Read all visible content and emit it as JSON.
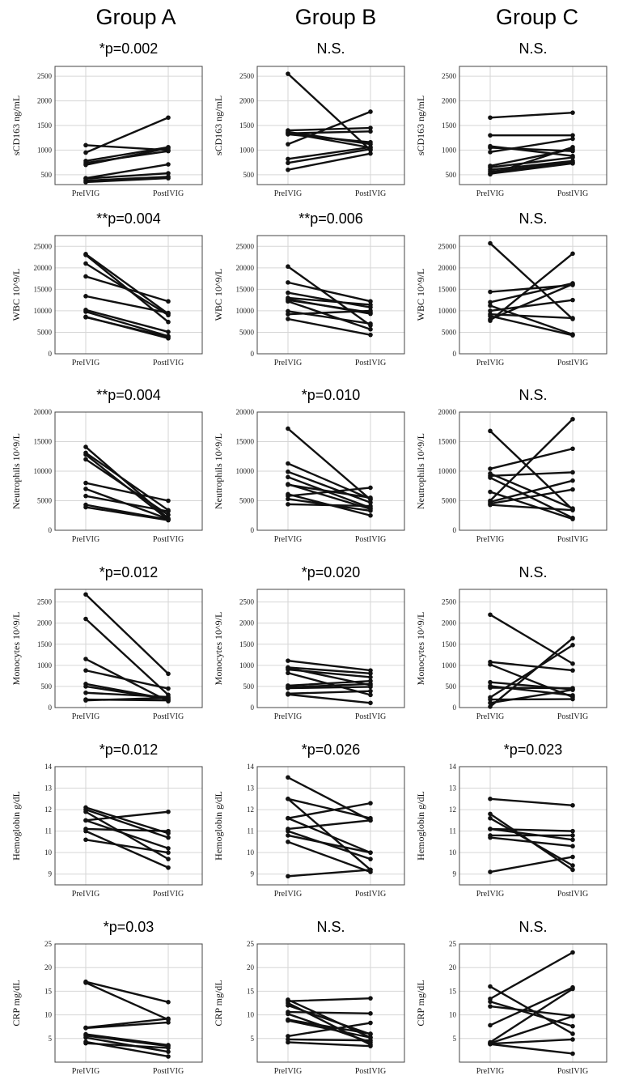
{
  "groups": [
    "Group A",
    "Group B",
    "Group C"
  ],
  "x_categories": [
    "PreIVIG",
    "PostIVIG"
  ],
  "rows": [
    {
      "key": "scd163",
      "ylabel": "sCD163 ng/mL",
      "ylim": [
        300,
        2700
      ],
      "yticks": [
        500,
        1000,
        1500,
        2000,
        2500
      ],
      "pvalues": [
        "*p=0.002",
        "N.S.",
        "N.S."
      ],
      "series": [
        [
          [
            1100,
            1000
          ],
          [
            950,
            1660
          ],
          [
            780,
            1060
          ],
          [
            740,
            980
          ],
          [
            700,
            1040
          ],
          [
            430,
            710
          ],
          [
            420,
            530
          ],
          [
            380,
            460
          ],
          [
            350,
            430
          ]
        ],
        [
          [
            2550,
            1000
          ],
          [
            1400,
            1450
          ],
          [
            1370,
            1120
          ],
          [
            1350,
            1050
          ],
          [
            1340,
            1380
          ],
          [
            1320,
            1160
          ],
          [
            1120,
            1780
          ],
          [
            820,
            1060
          ],
          [
            740,
            1020
          ],
          [
            600,
            930
          ]
        ],
        [
          [
            1660,
            1760
          ],
          [
            1300,
            1300
          ],
          [
            1080,
            880
          ],
          [
            1050,
            980
          ],
          [
            960,
            1230
          ],
          [
            680,
            1020
          ],
          [
            650,
            850
          ],
          [
            600,
            780
          ],
          [
            560,
            750
          ],
          [
            520,
            730
          ],
          [
            510,
            1060
          ]
        ]
      ]
    },
    {
      "key": "wbc",
      "ylabel": "WBC 10^9/L",
      "ylim": [
        0,
        27500
      ],
      "yticks": [
        0,
        5000,
        10000,
        15000,
        20000,
        25000
      ],
      "pvalues": [
        "**p=0.004",
        "**p=0.006",
        "N.S."
      ],
      "series": [
        [
          [
            23200,
            9300
          ],
          [
            23000,
            7400
          ],
          [
            21000,
            9000
          ],
          [
            18000,
            12200
          ],
          [
            13400,
            9500
          ],
          [
            10200,
            5100
          ],
          [
            9800,
            4100
          ],
          [
            8600,
            3600
          ],
          [
            8500,
            3900
          ]
        ],
        [
          [
            20300,
            6600
          ],
          [
            16600,
            12200
          ],
          [
            14200,
            10800
          ],
          [
            13000,
            11400
          ],
          [
            12500,
            9600
          ],
          [
            12200,
            5700
          ],
          [
            9900,
            7000
          ],
          [
            9200,
            10000
          ],
          [
            8100,
            4400
          ],
          [
            12700,
            9300
          ]
        ],
        [
          [
            25700,
            8100
          ],
          [
            14400,
            16000
          ],
          [
            12000,
            16400
          ],
          [
            11200,
            4500
          ],
          [
            10000,
            12500
          ],
          [
            9200,
            8300
          ],
          [
            8800,
            4300
          ],
          [
            8000,
            16200
          ],
          [
            7700,
            23300
          ]
        ]
      ]
    },
    {
      "key": "neutrophils",
      "ylabel": "Neutrophils 10^9/L",
      "ylim": [
        0,
        20000
      ],
      "yticks": [
        0,
        5000,
        10000,
        15000,
        20000
      ],
      "pvalues": [
        "**p=0.004",
        "*p=0.010",
        "N.S."
      ],
      "series": [
        [
          [
            14100,
            2000
          ],
          [
            13100,
            3400
          ],
          [
            12800,
            1800
          ],
          [
            12000,
            2600
          ],
          [
            8000,
            5000
          ],
          [
            7000,
            1900
          ],
          [
            5800,
            3200
          ],
          [
            4300,
            1800
          ],
          [
            3900,
            1700
          ]
        ],
        [
          [
            17200,
            5200
          ],
          [
            11300,
            5300
          ],
          [
            9900,
            4700
          ],
          [
            9000,
            3800
          ],
          [
            7800,
            3600
          ],
          [
            7700,
            5500
          ],
          [
            6100,
            2500
          ],
          [
            5800,
            7200
          ],
          [
            5300,
            3300
          ],
          [
            4400,
            4100
          ]
        ],
        [
          [
            16800,
            3500
          ],
          [
            10400,
            13800
          ],
          [
            9600,
            3700
          ],
          [
            9200,
            9800
          ],
          [
            8900,
            2100
          ],
          [
            6500,
            1900
          ],
          [
            5000,
            18800
          ],
          [
            4800,
            8400
          ],
          [
            4500,
            6900
          ],
          [
            4300,
            3400
          ]
        ]
      ]
    },
    {
      "key": "monocytes",
      "ylabel": "Monocytes 10^9/L",
      "ylim": [
        0,
        2800
      ],
      "yticks": [
        0,
        500,
        1000,
        1500,
        2000,
        2500
      ],
      "pvalues": [
        "*p=0.012",
        "*p=0.020",
        "N.S."
      ],
      "series": [
        [
          [
            2680,
            800
          ],
          [
            2100,
            300
          ],
          [
            1150,
            150
          ],
          [
            880,
            450
          ],
          [
            560,
            200
          ],
          [
            500,
            200
          ],
          [
            350,
            250
          ],
          [
            190,
            170
          ],
          [
            170,
            230
          ]
        ],
        [
          [
            1110,
            880
          ],
          [
            950,
            810
          ],
          [
            940,
            530
          ],
          [
            900,
            720
          ],
          [
            820,
            300
          ],
          [
            520,
            630
          ],
          [
            480,
            560
          ],
          [
            460,
            490
          ],
          [
            330,
            390
          ],
          [
            310,
            110
          ]
        ],
        [
          [
            2200,
            1040
          ],
          [
            1080,
            880
          ],
          [
            1020,
            250
          ],
          [
            600,
            430
          ],
          [
            510,
            290
          ],
          [
            470,
            460
          ],
          [
            240,
            1480
          ],
          [
            190,
            200
          ],
          [
            110,
            420
          ],
          [
            20,
            1640
          ]
        ]
      ]
    },
    {
      "key": "hemoglobin",
      "ylabel": "Hemoglobin g/dL",
      "ylim": [
        8.5,
        14
      ],
      "yticks": [
        9,
        10,
        11,
        12,
        13,
        14
      ],
      "pvalues": [
        "*p=0.012",
        "*p=0.026",
        "*p=0.023"
      ],
      "series": [
        [
          [
            12.1,
            10.9
          ],
          [
            12.0,
            10.7
          ],
          [
            11.9,
            9.7
          ],
          [
            11.5,
            11.9
          ],
          [
            11.5,
            10.2
          ],
          [
            11.1,
            11.0
          ],
          [
            11.0,
            9.3
          ],
          [
            10.6,
            10.0
          ]
        ],
        [
          [
            13.5,
            11.5
          ],
          [
            12.5,
            11.6
          ],
          [
            12.5,
            9.2
          ],
          [
            11.6,
            10.0
          ],
          [
            11.6,
            12.3
          ],
          [
            11.1,
            11.5
          ],
          [
            11.0,
            9.7
          ],
          [
            10.8,
            10.0
          ],
          [
            10.5,
            9.1
          ],
          [
            8.9,
            9.2
          ]
        ],
        [
          [
            12.5,
            12.2
          ],
          [
            11.8,
            9.2
          ],
          [
            11.6,
            9.4
          ],
          [
            11.1,
            11.0
          ],
          [
            11.1,
            10.6
          ],
          [
            10.8,
            10.8
          ],
          [
            10.7,
            10.3
          ],
          [
            9.1,
            9.8
          ]
        ]
      ]
    },
    {
      "key": "crp",
      "ylabel": "CRP mg/dL",
      "ylim": [
        0,
        25
      ],
      "yticks": [
        5,
        10,
        15,
        20,
        25
      ],
      "pvalues": [
        "*p=0.03",
        "N.S.",
        "N.S."
      ],
      "series": [
        [
          [
            17.0,
            12.7
          ],
          [
            16.8,
            9.0
          ],
          [
            7.3,
            9.2
          ],
          [
            7.2,
            8.4
          ],
          [
            5.9,
            3.6
          ],
          [
            5.6,
            3.4
          ],
          [
            5.2,
            2.2
          ],
          [
            4.3,
            1.2
          ],
          [
            4.0,
            3.0
          ]
        ],
        [
          [
            13.2,
            5.2
          ],
          [
            12.9,
            13.5
          ],
          [
            12.5,
            3.7
          ],
          [
            12.0,
            5.9
          ],
          [
            10.6,
            10.3
          ],
          [
            10.2,
            4.2
          ],
          [
            9.0,
            6.0
          ],
          [
            8.8,
            5.2
          ],
          [
            5.5,
            8.3
          ],
          [
            4.8,
            4.6
          ],
          [
            4.2,
            3.4
          ]
        ],
        [
          [
            16.0,
            6.0
          ],
          [
            13.4,
            23.2
          ],
          [
            12.8,
            7.6
          ],
          [
            11.8,
            9.8
          ],
          [
            7.8,
            15.8
          ],
          [
            4.2,
            15.5
          ],
          [
            4.0,
            9.7
          ],
          [
            3.9,
            4.8
          ],
          [
            3.8,
            1.8
          ]
        ]
      ]
    }
  ],
  "chart_data": {
    "type": "line",
    "description_free": true,
    "categories": [
      "PreIVIG",
      "PostIVIG"
    ]
  }
}
